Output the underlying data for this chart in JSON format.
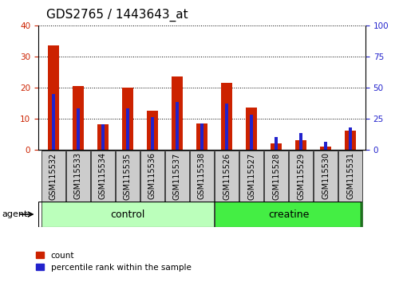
{
  "title": "GDS2765 / 1443643_at",
  "categories": [
    "GSM115532",
    "GSM115533",
    "GSM115534",
    "GSM115535",
    "GSM115536",
    "GSM115537",
    "GSM115538",
    "GSM115526",
    "GSM115527",
    "GSM115528",
    "GSM115529",
    "GSM115530",
    "GSM115531"
  ],
  "count_values": [
    33.5,
    20.5,
    8.0,
    20.0,
    12.5,
    23.5,
    8.5,
    21.5,
    13.5,
    2.0,
    3.0,
    1.0,
    6.0
  ],
  "percentile_values": [
    45,
    33,
    20,
    33,
    26,
    38,
    21,
    37,
    28,
    10,
    13,
    6,
    18
  ],
  "group_labels": [
    "control",
    "creatine"
  ],
  "left_ylim": [
    0,
    40
  ],
  "right_ylim": [
    0,
    100
  ],
  "left_yticks": [
    0,
    10,
    20,
    30,
    40
  ],
  "right_yticks": [
    0,
    25,
    50,
    75,
    100
  ],
  "bar_color_count": "#cc2200",
  "bar_color_percentile": "#2222cc",
  "agent_label": "agent",
  "legend_count": "count",
  "legend_percentile": "percentile rank within the sample",
  "title_fontsize": 11,
  "tick_fontsize": 7.5,
  "left_label_color": "#cc2200",
  "right_label_color": "#2222cc",
  "ctrl_color": "#bbffbb",
  "creat_color": "#44ee44",
  "cat_box_color": "#cccccc"
}
